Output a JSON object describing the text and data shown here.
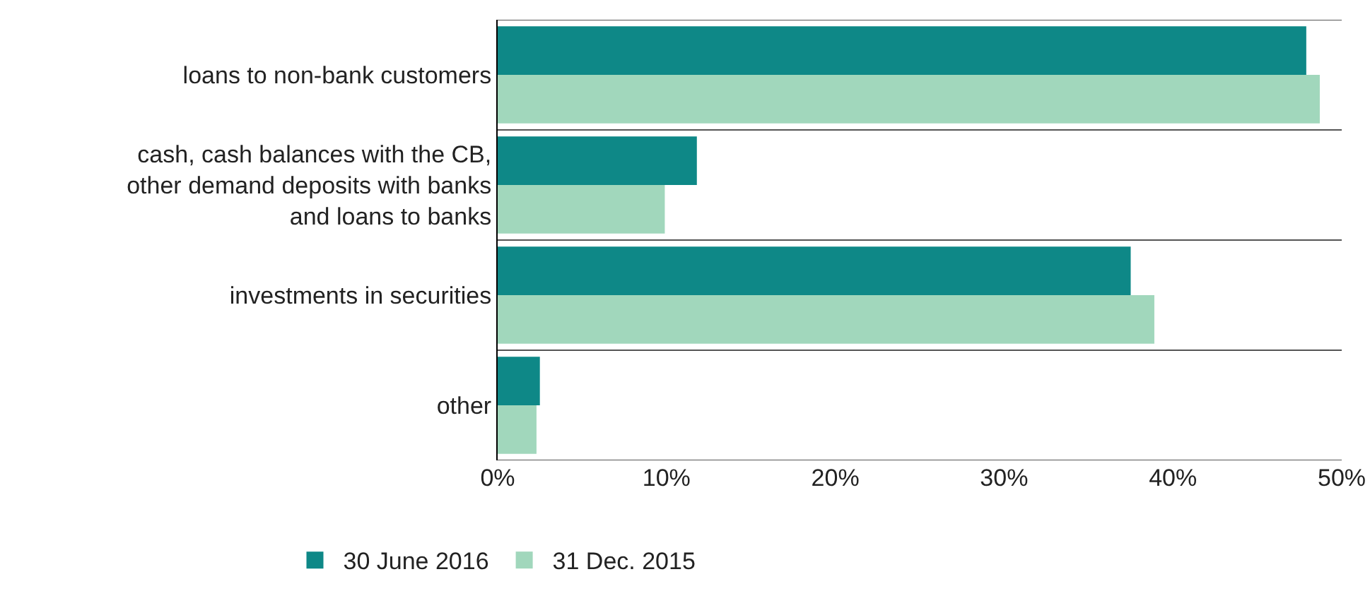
{
  "chart_data": {
    "type": "bar",
    "orientation": "horizontal",
    "categories": [
      "loans to non-bank customers",
      "cash, cash balances with the CB, other demand deposits with banks and loans to banks",
      "investments in securities",
      "other"
    ],
    "series": [
      {
        "name": "30 June 2016",
        "color": "#0e8887",
        "values": [
          47.9,
          11.8,
          37.5,
          2.5
        ]
      },
      {
        "name": "31 Dec. 2015",
        "color": "#a1d7bc",
        "values": [
          48.7,
          9.9,
          38.9,
          2.3
        ]
      }
    ],
    "xlim": [
      0,
      50
    ],
    "xticks": [
      {
        "value": 0,
        "label": "0%"
      },
      {
        "value": 10,
        "label": "10%"
      },
      {
        "value": 20,
        "label": "20%"
      },
      {
        "value": 30,
        "label": "30%"
      },
      {
        "value": 40,
        "label": "40%"
      },
      {
        "value": 50,
        "label": "50%"
      }
    ],
    "grid": "y",
    "legend": "bottom left"
  }
}
